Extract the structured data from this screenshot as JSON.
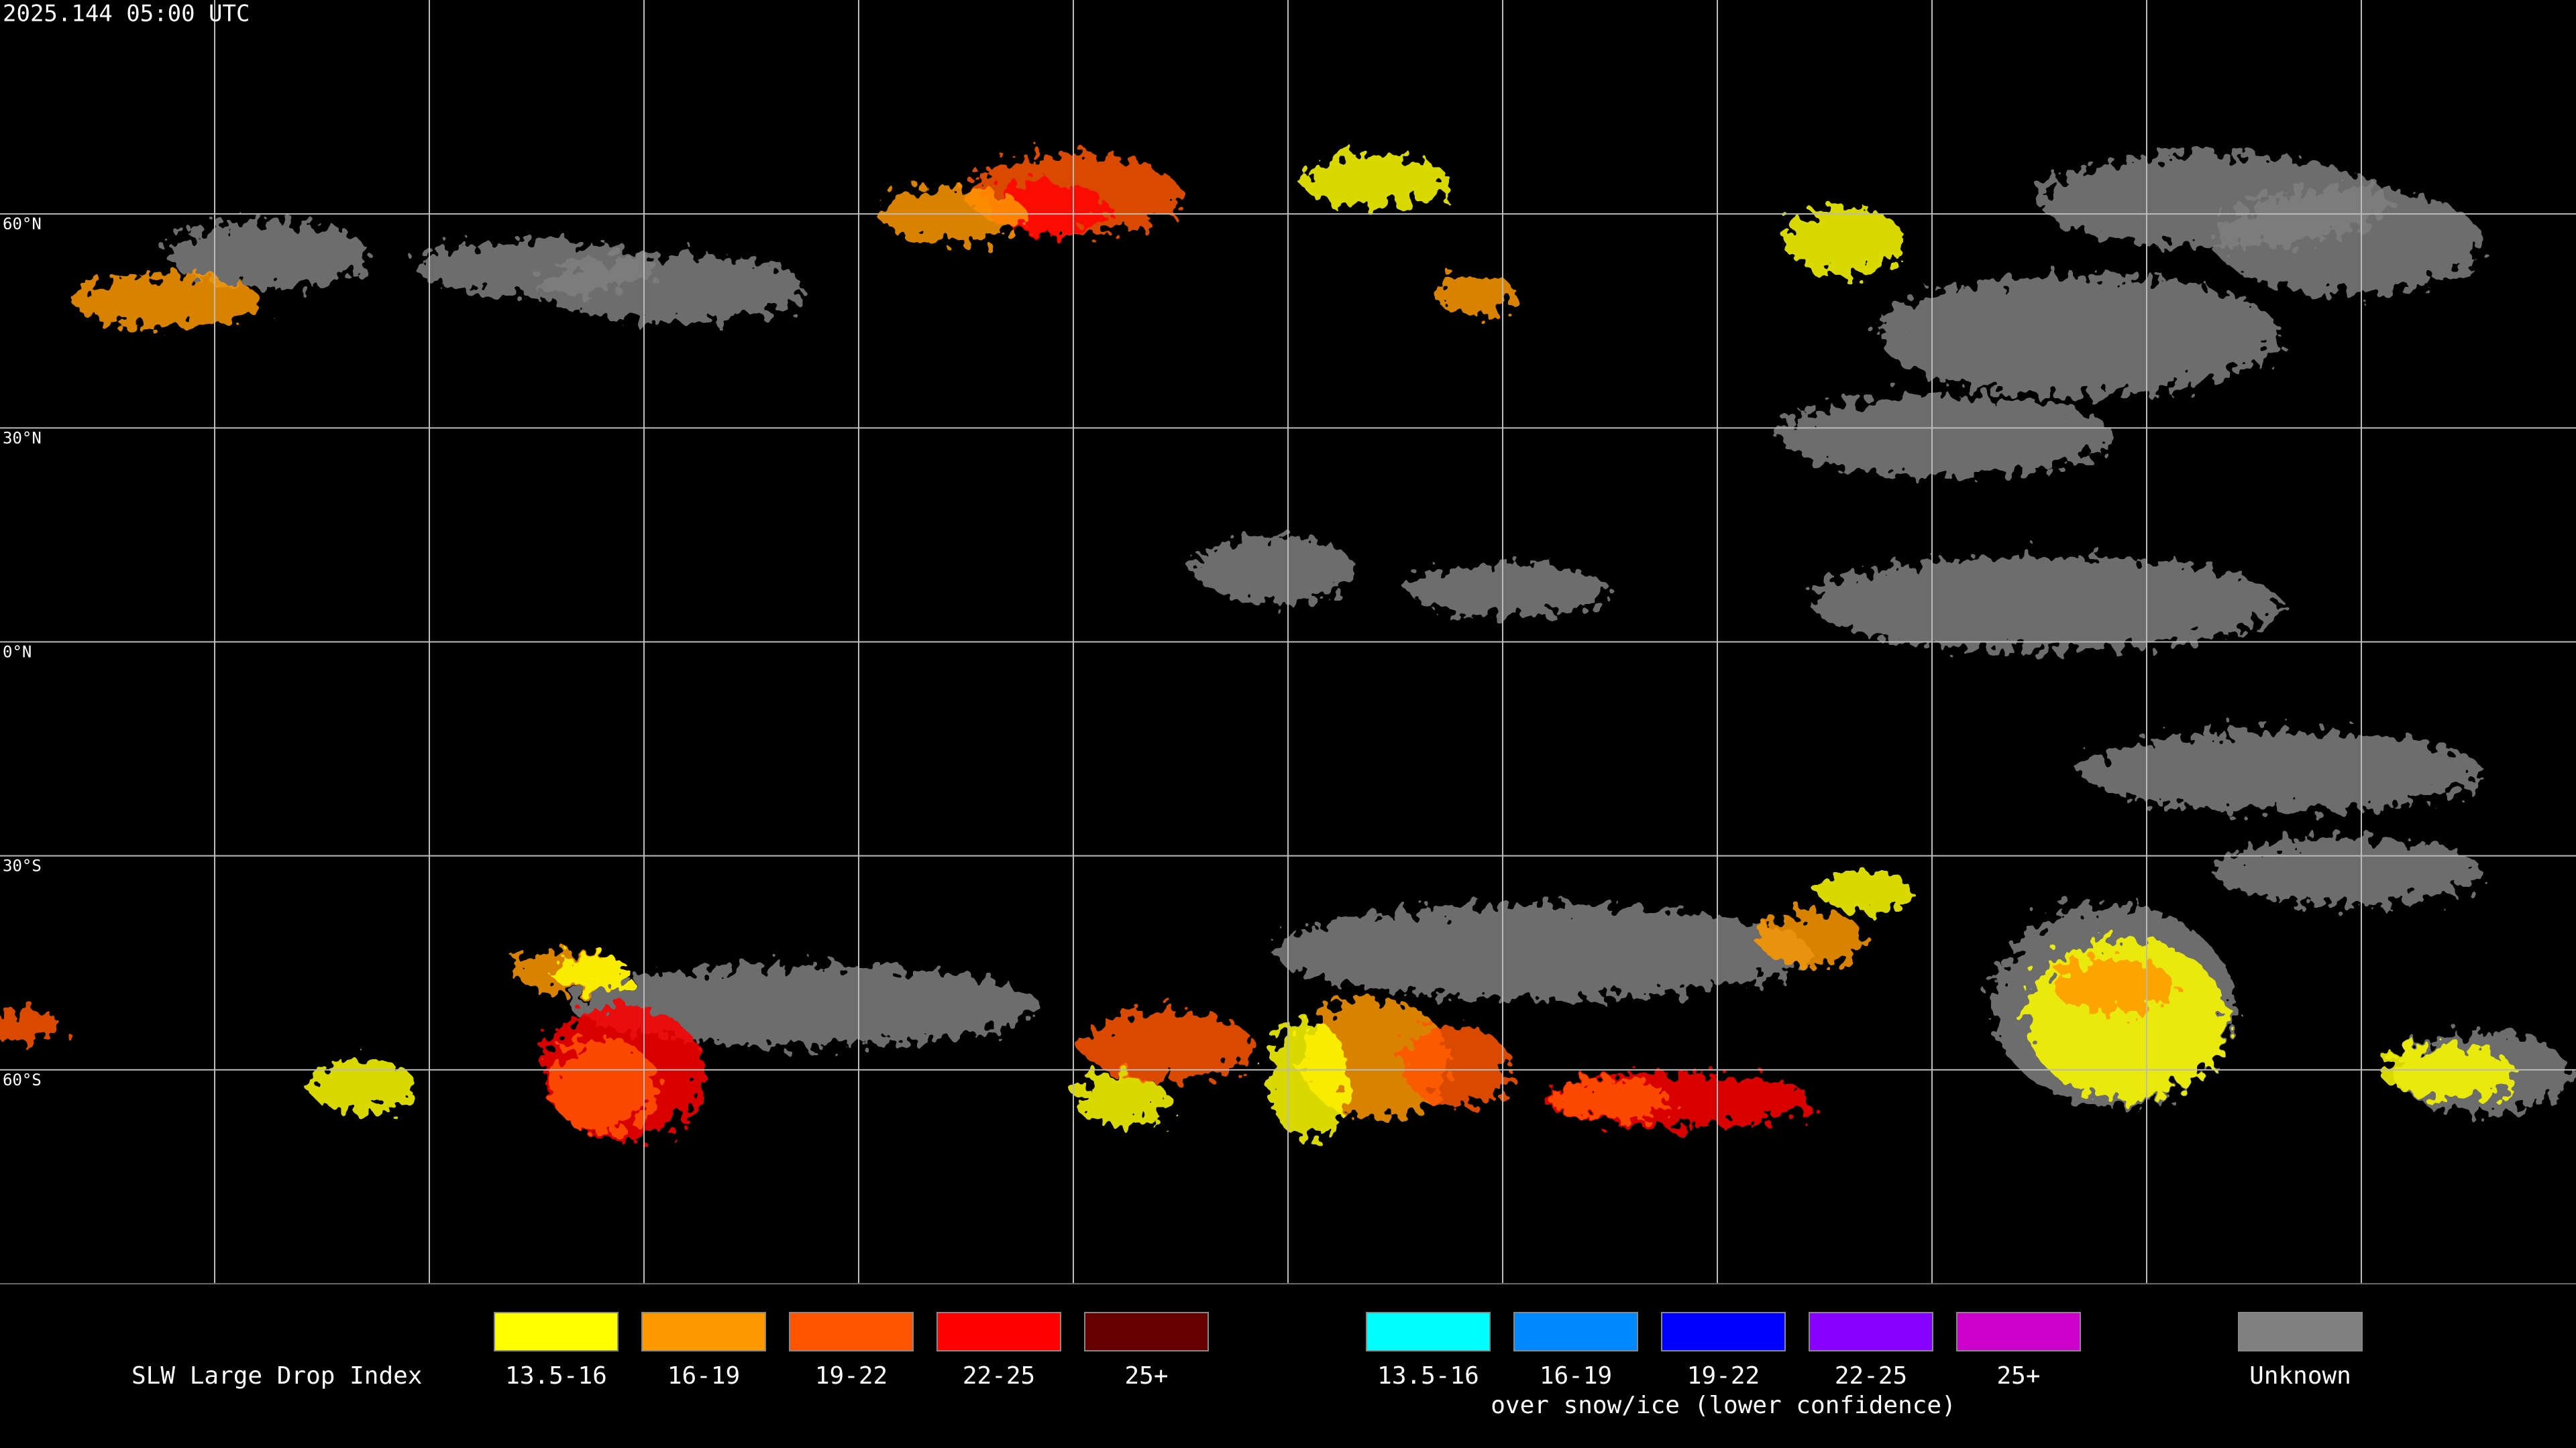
{
  "header": {
    "timestamp": "2025.144 05:00 UTC"
  },
  "map": {
    "latitude_labels": [
      "60°N",
      "30°N",
      "0°N",
      "30°S",
      "60°S"
    ]
  },
  "legend": {
    "title": "SLW Large Drop Index",
    "groups": [
      {
        "items": [
          {
            "label": "13.5-16",
            "color": "#ffff00"
          },
          {
            "label": "16-19",
            "color": "#ff9900"
          },
          {
            "label": "19-22",
            "color": "#ff5500"
          },
          {
            "label": "22-25",
            "color": "#ff0000"
          },
          {
            "label": "25+",
            "color": "#660000"
          }
        ]
      },
      {
        "items": [
          {
            "label": "13.5-16",
            "color": "#00ffff"
          },
          {
            "label": "16-19",
            "color": "#0088ff"
          },
          {
            "label": "19-22",
            "color": "#0000ff"
          },
          {
            "label": "22-25",
            "color": "#8800ff"
          },
          {
            "label": "25+",
            "color": "#cc00cc"
          }
        ],
        "caption": "over snow/ice (lower confidence)"
      },
      {
        "items": [
          {
            "label": "Unknown",
            "color": "#808080"
          }
        ]
      }
    ]
  }
}
